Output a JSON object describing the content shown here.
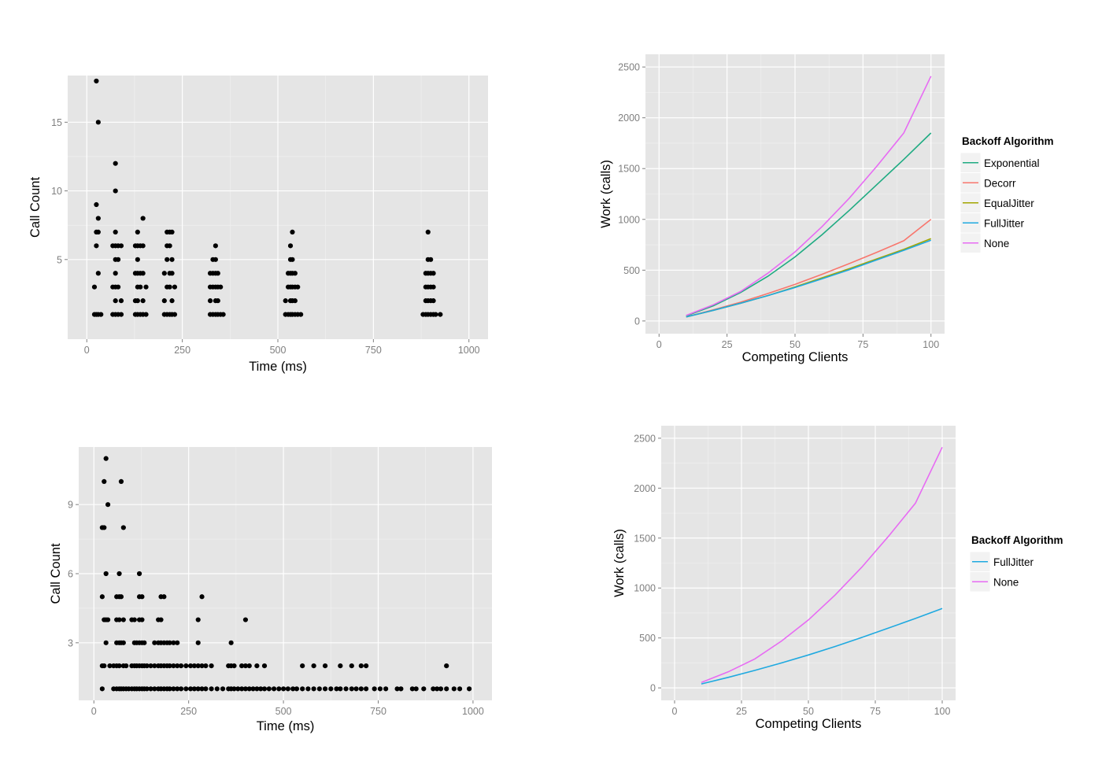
{
  "chart_data": [
    {
      "type": "scatter",
      "title": "",
      "xlabel": "Time (ms)",
      "ylabel": "Call Count",
      "xlim": [
        -50,
        1050
      ],
      "ylim": [
        -0.8,
        18.4
      ],
      "xticks": [
        0,
        250,
        500,
        750,
        1000
      ],
      "yticks": [
        5,
        10,
        15
      ],
      "xticklabels": [
        "0",
        "250",
        "500",
        "750",
        "1000"
      ],
      "yticklabels": [
        "5",
        "10",
        "15"
      ],
      "grid": true,
      "columns": [
        {
          "x": 20,
          "counts": [
            1,
            3
          ]
        },
        {
          "x": 25,
          "counts": [
            1,
            6,
            7,
            9,
            18
          ]
        },
        {
          "x": 30,
          "counts": [
            1,
            4,
            7,
            8,
            15
          ]
        },
        {
          "x": 37,
          "counts": [
            1
          ]
        },
        {
          "x": 68,
          "counts": [
            1,
            3,
            6
          ]
        },
        {
          "x": 75,
          "counts": [
            1,
            2,
            3,
            4,
            5,
            6,
            7,
            10,
            12
          ]
        },
        {
          "x": 82,
          "counts": [
            1,
            3,
            5,
            6
          ]
        },
        {
          "x": 90,
          "counts": [
            1,
            2,
            6
          ]
        },
        {
          "x": 127,
          "counts": [
            1,
            2,
            4,
            6
          ]
        },
        {
          "x": 133,
          "counts": [
            1,
            2,
            3,
            4,
            5,
            6,
            7
          ]
        },
        {
          "x": 140,
          "counts": [
            1,
            3,
            4,
            6
          ]
        },
        {
          "x": 147,
          "counts": [
            1,
            2,
            4,
            6,
            8
          ]
        },
        {
          "x": 155,
          "counts": [
            1,
            3
          ]
        },
        {
          "x": 203,
          "counts": [
            1,
            2,
            4
          ]
        },
        {
          "x": 210,
          "counts": [
            1,
            3,
            5,
            6,
            7
          ]
        },
        {
          "x": 217,
          "counts": [
            1,
            3,
            4,
            6,
            7
          ]
        },
        {
          "x": 223,
          "counts": [
            1,
            2,
            4,
            5,
            7
          ]
        },
        {
          "x": 230,
          "counts": [
            1,
            3
          ]
        },
        {
          "x": 323,
          "counts": [
            1,
            2,
            3,
            4
          ]
        },
        {
          "x": 330,
          "counts": [
            1,
            3,
            4,
            5
          ]
        },
        {
          "x": 337,
          "counts": [
            1,
            2,
            3,
            4,
            5,
            6
          ]
        },
        {
          "x": 343,
          "counts": [
            1,
            2,
            3,
            4
          ]
        },
        {
          "x": 350,
          "counts": [
            1,
            3
          ]
        },
        {
          "x": 357,
          "counts": [
            1
          ]
        },
        {
          "x": 520,
          "counts": [
            1,
            2
          ]
        },
        {
          "x": 527,
          "counts": [
            1,
            3,
            4
          ]
        },
        {
          "x": 533,
          "counts": [
            1,
            2,
            3,
            4,
            5,
            6
          ]
        },
        {
          "x": 538,
          "counts": [
            1,
            2,
            3,
            4,
            5,
            7
          ]
        },
        {
          "x": 545,
          "counts": [
            1,
            2,
            3,
            4
          ]
        },
        {
          "x": 552,
          "counts": [
            1,
            3
          ]
        },
        {
          "x": 560,
          "counts": [
            1
          ]
        },
        {
          "x": 880,
          "counts": [
            1
          ]
        },
        {
          "x": 887,
          "counts": [
            1,
            2,
            3,
            4
          ]
        },
        {
          "x": 893,
          "counts": [
            1,
            2,
            3,
            4,
            5,
            7
          ]
        },
        {
          "x": 900,
          "counts": [
            1,
            2,
            3,
            4,
            5
          ]
        },
        {
          "x": 907,
          "counts": [
            1,
            2,
            3,
            4
          ]
        },
        {
          "x": 913,
          "counts": [
            1
          ]
        },
        {
          "x": 925,
          "counts": [
            1
          ]
        }
      ]
    },
    {
      "type": "line",
      "title": "",
      "xlabel": "Competing Clients",
      "ylabel": "Work (calls)",
      "xlim": [
        -5,
        105
      ],
      "ylim": [
        -125,
        2625
      ],
      "xticks": [
        0,
        25,
        50,
        75,
        100
      ],
      "yticks": [
        0,
        500,
        1000,
        1500,
        2000,
        2500
      ],
      "xticklabels": [
        "0",
        "25",
        "50",
        "75",
        "100"
      ],
      "yticklabels": [
        "0",
        "500",
        "1000",
        "1500",
        "2000",
        "2500"
      ],
      "grid": true,
      "legend_title": "Backoff Algorithm",
      "legend_position": "right",
      "x": [
        10,
        20,
        30,
        40,
        50,
        60,
        70,
        80,
        90,
        100
      ],
      "series": [
        {
          "name": "Exponential",
          "color": "#1FAB82",
          "values": [
            50,
            150,
            280,
            440,
            630,
            850,
            1090,
            1340,
            1590,
            1850
          ]
        },
        {
          "name": "Decorr",
          "color": "#F8766D",
          "values": [
            40,
            110,
            185,
            270,
            360,
            460,
            565,
            675,
            790,
            1000
          ]
        },
        {
          "name": "EqualJitter",
          "color": "#A3A500",
          "values": [
            40,
            105,
            175,
            250,
            335,
            425,
            515,
            610,
            705,
            810
          ]
        },
        {
          "name": "FullJitter",
          "color": "#1FA9E0",
          "values": [
            40,
            105,
            175,
            250,
            330,
            415,
            505,
            600,
            695,
            795
          ]
        },
        {
          "name": "None",
          "color": "#E76BF3",
          "values": [
            55,
            160,
            290,
            470,
            680,
            930,
            1210,
            1520,
            1850,
            2410
          ]
        }
      ]
    },
    {
      "type": "scatter",
      "title": "",
      "xlabel": "Time (ms)",
      "ylabel": "Call Count",
      "xlim": [
        -40,
        1050
      ],
      "ylim": [
        0.5,
        11.5
      ],
      "xticks": [
        0,
        250,
        500,
        750,
        1000
      ],
      "yticks": [
        3,
        6,
        9
      ],
      "xticklabels": [
        "0",
        "250",
        "500",
        "750",
        "1000"
      ],
      "yticklabels": [
        "3",
        "6",
        "9"
      ],
      "grid": true,
      "columns": [
        {
          "x": 22,
          "counts": [
            1,
            2,
            5,
            8
          ]
        },
        {
          "x": 27,
          "counts": [
            2,
            4,
            8,
            10
          ]
        },
        {
          "x": 32,
          "counts": [
            3,
            4,
            6,
            11
          ]
        },
        {
          "x": 37,
          "counts": [
            4,
            9
          ]
        },
        {
          "x": 42,
          "counts": [
            2
          ]
        },
        {
          "x": 52,
          "counts": [
            1,
            2
          ]
        },
        {
          "x": 60,
          "counts": [
            1,
            2,
            3,
            4,
            5
          ]
        },
        {
          "x": 67,
          "counts": [
            1,
            2,
            3,
            4,
            5,
            6
          ]
        },
        {
          "x": 72,
          "counts": [
            1,
            3,
            5,
            10
          ]
        },
        {
          "x": 78,
          "counts": [
            1,
            2,
            3,
            4,
            8
          ]
        },
        {
          "x": 85,
          "counts": [
            1,
            2
          ]
        },
        {
          "x": 92,
          "counts": [
            1
          ]
        },
        {
          "x": 100,
          "counts": [
            1,
            2,
            4
          ]
        },
        {
          "x": 107,
          "counts": [
            1,
            2,
            3,
            4
          ]
        },
        {
          "x": 113,
          "counts": [
            1,
            2,
            3
          ]
        },
        {
          "x": 120,
          "counts": [
            1,
            2,
            3,
            4,
            5,
            6
          ]
        },
        {
          "x": 127,
          "counts": [
            1,
            2,
            3,
            4,
            5
          ]
        },
        {
          "x": 133,
          "counts": [
            1,
            2,
            3
          ]
        },
        {
          "x": 140,
          "counts": [
            1,
            2
          ]
        },
        {
          "x": 150,
          "counts": [
            1,
            2
          ]
        },
        {
          "x": 160,
          "counts": [
            1,
            2,
            3
          ]
        },
        {
          "x": 170,
          "counts": [
            1,
            2,
            3,
            4
          ]
        },
        {
          "x": 177,
          "counts": [
            1,
            2,
            3,
            4,
            5
          ]
        },
        {
          "x": 185,
          "counts": [
            1,
            2,
            3,
            5
          ]
        },
        {
          "x": 193,
          "counts": [
            1,
            2,
            3
          ]
        },
        {
          "x": 200,
          "counts": [
            1,
            2,
            3
          ]
        },
        {
          "x": 210,
          "counts": [
            1,
            2,
            3
          ]
        },
        {
          "x": 220,
          "counts": [
            1,
            2,
            3
          ]
        },
        {
          "x": 230,
          "counts": [
            1,
            2
          ]
        },
        {
          "x": 243,
          "counts": [
            1,
            2
          ]
        },
        {
          "x": 255,
          "counts": [
            1,
            2
          ]
        },
        {
          "x": 265,
          "counts": [
            1,
            2
          ]
        },
        {
          "x": 275,
          "counts": [
            1,
            2,
            3,
            4
          ]
        },
        {
          "x": 285,
          "counts": [
            1,
            2,
            5
          ]
        },
        {
          "x": 295,
          "counts": [
            1,
            2
          ]
        },
        {
          "x": 310,
          "counts": [
            1,
            2
          ]
        },
        {
          "x": 325,
          "counts": [
            1
          ]
        },
        {
          "x": 340,
          "counts": [
            1
          ]
        },
        {
          "x": 355,
          "counts": [
            1,
            2
          ]
        },
        {
          "x": 362,
          "counts": [
            1,
            2,
            3
          ]
        },
        {
          "x": 370,
          "counts": [
            1,
            2
          ]
        },
        {
          "x": 380,
          "counts": [
            1
          ]
        },
        {
          "x": 390,
          "counts": [
            1,
            2
          ]
        },
        {
          "x": 400,
          "counts": [
            1,
            2,
            4
          ]
        },
        {
          "x": 410,
          "counts": [
            1,
            2
          ]
        },
        {
          "x": 420,
          "counts": [
            1
          ]
        },
        {
          "x": 430,
          "counts": [
            1,
            2
          ]
        },
        {
          "x": 440,
          "counts": [
            1
          ]
        },
        {
          "x": 450,
          "counts": [
            1,
            2
          ]
        },
        {
          "x": 462,
          "counts": [
            1
          ]
        },
        {
          "x": 475,
          "counts": [
            1
          ]
        },
        {
          "x": 488,
          "counts": [
            1
          ]
        },
        {
          "x": 500,
          "counts": [
            1
          ]
        },
        {
          "x": 512,
          "counts": [
            1
          ]
        },
        {
          "x": 525,
          "counts": [
            1
          ]
        },
        {
          "x": 535,
          "counts": [
            1
          ]
        },
        {
          "x": 550,
          "counts": [
            1,
            2
          ]
        },
        {
          "x": 565,
          "counts": [
            1
          ]
        },
        {
          "x": 580,
          "counts": [
            1,
            2
          ]
        },
        {
          "x": 595,
          "counts": [
            1
          ]
        },
        {
          "x": 610,
          "counts": [
            1,
            2
          ]
        },
        {
          "x": 625,
          "counts": [
            1
          ]
        },
        {
          "x": 640,
          "counts": [
            1
          ]
        },
        {
          "x": 650,
          "counts": [
            1,
            2
          ]
        },
        {
          "x": 665,
          "counts": [
            1
          ]
        },
        {
          "x": 680,
          "counts": [
            1,
            2
          ]
        },
        {
          "x": 692,
          "counts": [
            1
          ]
        },
        {
          "x": 705,
          "counts": [
            1,
            2
          ]
        },
        {
          "x": 718,
          "counts": [
            1,
            2
          ]
        },
        {
          "x": 740,
          "counts": [
            1
          ]
        },
        {
          "x": 755,
          "counts": [
            1
          ]
        },
        {
          "x": 770,
          "counts": [
            1
          ]
        },
        {
          "x": 800,
          "counts": [
            1
          ]
        },
        {
          "x": 810,
          "counts": [
            1
          ]
        },
        {
          "x": 840,
          "counts": [
            1
          ]
        },
        {
          "x": 850,
          "counts": [
            1
          ]
        },
        {
          "x": 870,
          "counts": [
            1
          ]
        },
        {
          "x": 895,
          "counts": [
            1
          ]
        },
        {
          "x": 905,
          "counts": [
            1
          ]
        },
        {
          "x": 915,
          "counts": [
            1
          ]
        },
        {
          "x": 930,
          "counts": [
            1,
            2
          ]
        },
        {
          "x": 950,
          "counts": [
            1
          ]
        },
        {
          "x": 965,
          "counts": [
            1
          ]
        },
        {
          "x": 990,
          "counts": [
            1
          ]
        }
      ]
    },
    {
      "type": "line",
      "title": "",
      "xlabel": "Competing Clients",
      "ylabel": "Work (calls)",
      "xlim": [
        -5,
        105
      ],
      "ylim": [
        -125,
        2625
      ],
      "xticks": [
        0,
        25,
        50,
        75,
        100
      ],
      "yticks": [
        0,
        500,
        1000,
        1500,
        2000,
        2500
      ],
      "xticklabels": [
        "0",
        "25",
        "50",
        "75",
        "100"
      ],
      "yticklabels": [
        "0",
        "500",
        "1000",
        "1500",
        "2000",
        "2500"
      ],
      "grid": true,
      "legend_title": "Backoff Algorithm",
      "legend_position": "right",
      "x": [
        10,
        20,
        30,
        40,
        50,
        60,
        70,
        80,
        90,
        100
      ],
      "series": [
        {
          "name": "FullJitter",
          "color": "#1FA9E0",
          "values": [
            40,
            105,
            175,
            250,
            330,
            415,
            505,
            600,
            695,
            795
          ]
        },
        {
          "name": "None",
          "color": "#E76BF3",
          "values": [
            55,
            160,
            290,
            470,
            680,
            930,
            1210,
            1520,
            1850,
            2410
          ]
        }
      ]
    }
  ]
}
